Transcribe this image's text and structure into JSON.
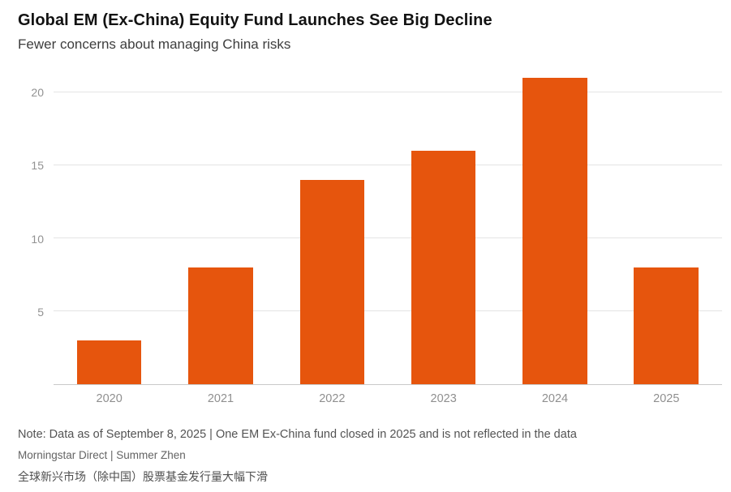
{
  "chart_data": {
    "type": "bar",
    "title": "Global EM (Ex-China) Equity Fund Launches See Big Decline",
    "subtitle": "Fewer concerns about managing China risks",
    "categories": [
      "2020",
      "2021",
      "2022",
      "2023",
      "2024",
      "2025"
    ],
    "values": [
      3,
      8,
      14,
      16,
      21,
      8
    ],
    "xlabel": "",
    "ylabel": "",
    "ylim": [
      0,
      21.5
    ],
    "yticks": [
      5,
      10,
      15,
      20
    ],
    "bar_color": "#E6550D",
    "grid": true,
    "legend": false
  },
  "footer": {
    "note": "Note: Data as of September 8, 2025 | One EM Ex-China fund closed in 2025 and is not reflected in the data",
    "source": "Morningstar Direct | Summer Zhen",
    "chinese_caption": "全球新兴市场（除中国）股票基金发行量大幅下滑"
  }
}
